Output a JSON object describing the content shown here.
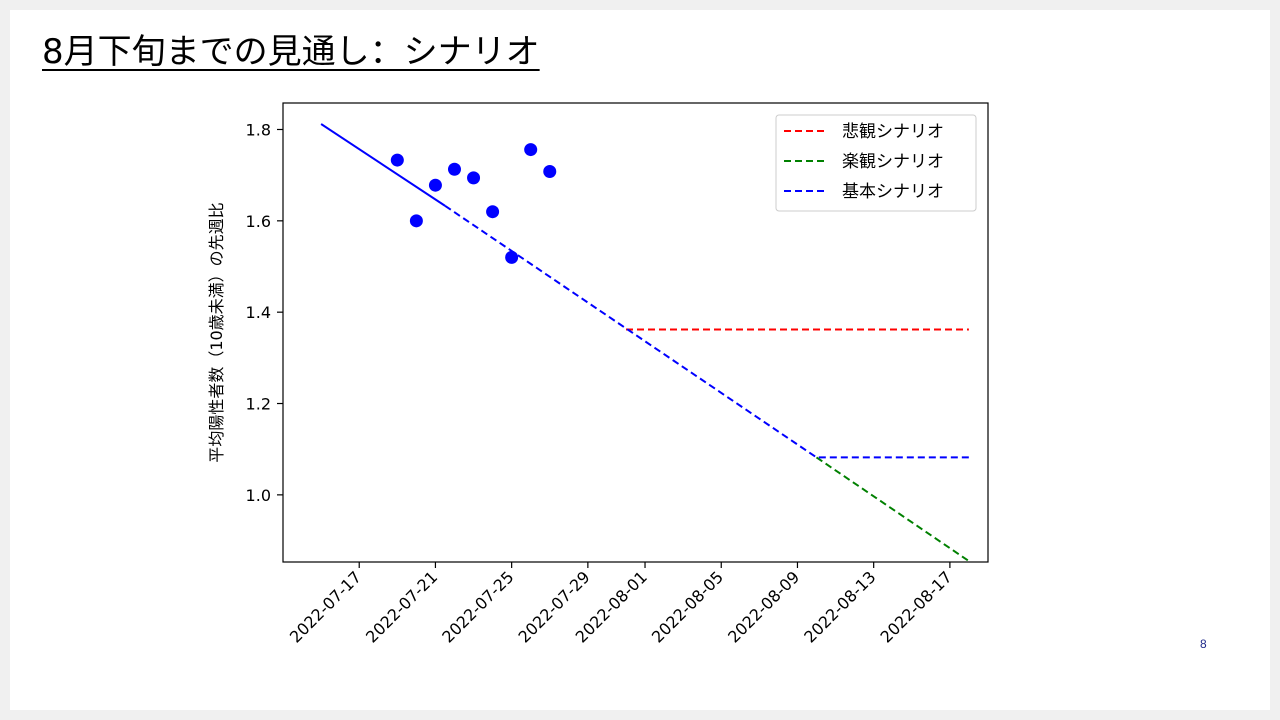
{
  "slide": {
    "title": "8月下旬までの見通し：シナリオ",
    "page_number": "8"
  },
  "chart_data": {
    "type": "line",
    "ylabel": "平均陽性者数（10歳未満）の先週比",
    "xlabel": "",
    "xlim": [
      "2022-07-13",
      "2022-08-19"
    ],
    "ylim": [
      0.853,
      1.858
    ],
    "x_ticks": [
      "2022-07-17",
      "2022-07-21",
      "2022-07-25",
      "2022-07-29",
      "2022-08-01",
      "2022-08-05",
      "2022-08-09",
      "2022-08-13",
      "2022-08-17"
    ],
    "y_ticks": [
      1.0,
      1.2,
      1.4,
      1.6,
      1.8
    ],
    "grid": false,
    "legend_position": "top-right",
    "observed_points": {
      "color": "#0000ff",
      "points": [
        {
          "x": "2022-07-19",
          "y": 1.733
        },
        {
          "x": "2022-07-20",
          "y": 1.6
        },
        {
          "x": "2022-07-21",
          "y": 1.678
        },
        {
          "x": "2022-07-22",
          "y": 1.713
        },
        {
          "x": "2022-07-23",
          "y": 1.694
        },
        {
          "x": "2022-07-24",
          "y": 1.62
        },
        {
          "x": "2022-07-25",
          "y": 1.52
        },
        {
          "x": "2022-07-26",
          "y": 1.756
        },
        {
          "x": "2022-07-27",
          "y": 1.708
        }
      ]
    },
    "fit_line": {
      "color": "#0000ff",
      "points": [
        {
          "x": "2022-07-15",
          "y": 1.812
        },
        {
          "x": "2022-07-21.5",
          "y": 1.633
        }
      ]
    },
    "series": [
      {
        "name": "悲観シナリオ",
        "color": "#ff0000",
        "points": [
          {
            "x": "2022-07-31",
            "y": 1.362
          },
          {
            "x": "2022-08-18",
            "y": 1.362
          }
        ]
      },
      {
        "name": "楽観シナリオ",
        "color": "#008000",
        "points": [
          {
            "x": "2022-08-10",
            "y": 1.082
          },
          {
            "x": "2022-08-18",
            "y": 0.855
          }
        ]
      },
      {
        "name": "基本シナリオ",
        "color": "#0000ff",
        "points": [
          {
            "x": "2022-07-21.5",
            "y": 1.633
          },
          {
            "x": "2022-08-10",
            "y": 1.082
          },
          {
            "x": "2022-08-18",
            "y": 1.082
          }
        ]
      }
    ]
  }
}
